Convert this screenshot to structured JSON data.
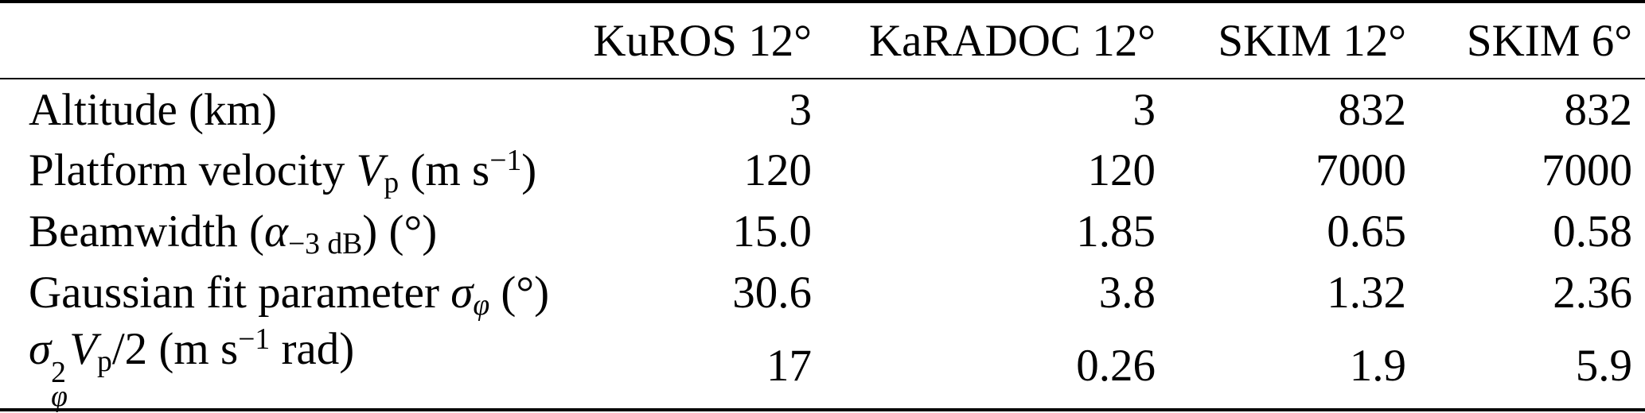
{
  "page": {
    "background": "#ffffff",
    "text_color": "#000000",
    "rule_color": "#000000"
  },
  "table": {
    "columns": [
      {
        "label": ""
      },
      {
        "label": "KuROS 12°"
      },
      {
        "label": "KaRADOC 12°"
      },
      {
        "label": "SKIM 12°"
      },
      {
        "label": "SKIM 6°"
      }
    ],
    "rows": [
      {
        "label_text": "Altitude (km)",
        "label_rich": [
          {
            "type": "t",
            "v": "Altitude (km)"
          }
        ],
        "values": [
          "3",
          "3",
          "832",
          "832"
        ]
      },
      {
        "label_text": "Platform velocity Vp (m s−1)",
        "label_rich": [
          {
            "type": "t",
            "v": "Platform velocity "
          },
          {
            "type": "i",
            "v": "V"
          },
          {
            "type": "sub",
            "v": "p"
          },
          {
            "type": "t",
            "v": " (m s"
          },
          {
            "type": "sup",
            "v": "−1"
          },
          {
            "type": "t",
            "v": ")"
          }
        ],
        "values": [
          "120",
          "120",
          "7000",
          "7000"
        ]
      },
      {
        "label_text": "Beamwidth (α−3 dB) (°)",
        "label_rich": [
          {
            "type": "t",
            "v": "Beamwidth ("
          },
          {
            "type": "i",
            "v": "α"
          },
          {
            "type": "sub",
            "v": "−3 dB"
          },
          {
            "type": "t",
            "v": ") (°)"
          }
        ],
        "values": [
          "15.0",
          "1.85",
          "0.65",
          "0.58"
        ]
      },
      {
        "label_text": "Gaussian fit parameter σφ (°)",
        "label_rich": [
          {
            "type": "t",
            "v": "Gaussian fit parameter "
          },
          {
            "type": "i",
            "v": "σ"
          },
          {
            "type": "isub",
            "v": "φ"
          },
          {
            "type": "t",
            "v": " (°)"
          }
        ],
        "values": [
          "30.6",
          "3.8",
          "1.32",
          "2.36"
        ]
      },
      {
        "label_text": "σφ2Vp/2 (m s−1 rad)",
        "label_rich": [
          {
            "type": "i",
            "v": "σ"
          },
          {
            "type": "ss",
            "sup": "2",
            "sub": "φ"
          },
          {
            "type": "i",
            "v": "V"
          },
          {
            "type": "sub",
            "v": "p"
          },
          {
            "type": "t",
            "v": "/2 (m s"
          },
          {
            "type": "sup",
            "v": "−1"
          },
          {
            "type": "t",
            "v": " rad)"
          }
        ],
        "values": [
          "17",
          "0.26",
          "1.9",
          "5.9"
        ]
      }
    ]
  }
}
